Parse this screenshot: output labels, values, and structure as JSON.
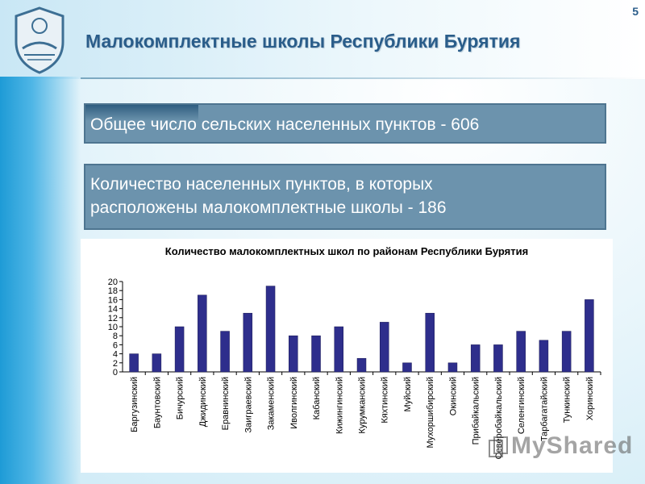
{
  "header": {
    "title": "Малокомплектные школы Республики Бурятия",
    "page_number": "5"
  },
  "info": {
    "box1": "Общее число сельских населенных пунктов - 606",
    "box2_line1": "Количество населенных пунктов, в которых",
    "box2_line2": "расположены малокомплектные школы -  186"
  },
  "watermark": {
    "text": "MyShared"
  },
  "colors": {
    "bar": "#2e2e8c",
    "box": "#6c93ad",
    "title": "#2a5d8a"
  },
  "chart_data": {
    "type": "bar",
    "title": "Количество малокомплектных школ по районам Республики Бурятия",
    "categories": [
      "Баргузинский",
      "Баунтовский",
      "Бичурский",
      "Джидинский",
      "Еравнинский",
      "Заиграевский",
      "Закаменский",
      "Иволгинский",
      "Кабанский",
      "Кижингинский",
      "Курумканский",
      "Кяхтинский",
      "Муйский",
      "Мухоршибирский",
      "Окинский",
      "Прибайкальский",
      "Северобайкальский",
      "Селенгинский",
      "Тарбагатайский",
      "Тункинский",
      "Хоринский"
    ],
    "values": [
      4,
      4,
      10,
      17,
      9,
      13,
      19,
      8,
      8,
      10,
      3,
      11,
      2,
      13,
      2,
      6,
      6,
      9,
      7,
      9,
      16
    ],
    "yticks": [
      0,
      2,
      4,
      6,
      8,
      10,
      12,
      14,
      16,
      18,
      20
    ],
    "ylim": [
      0,
      20
    ],
    "grid": false,
    "legend": "none"
  }
}
